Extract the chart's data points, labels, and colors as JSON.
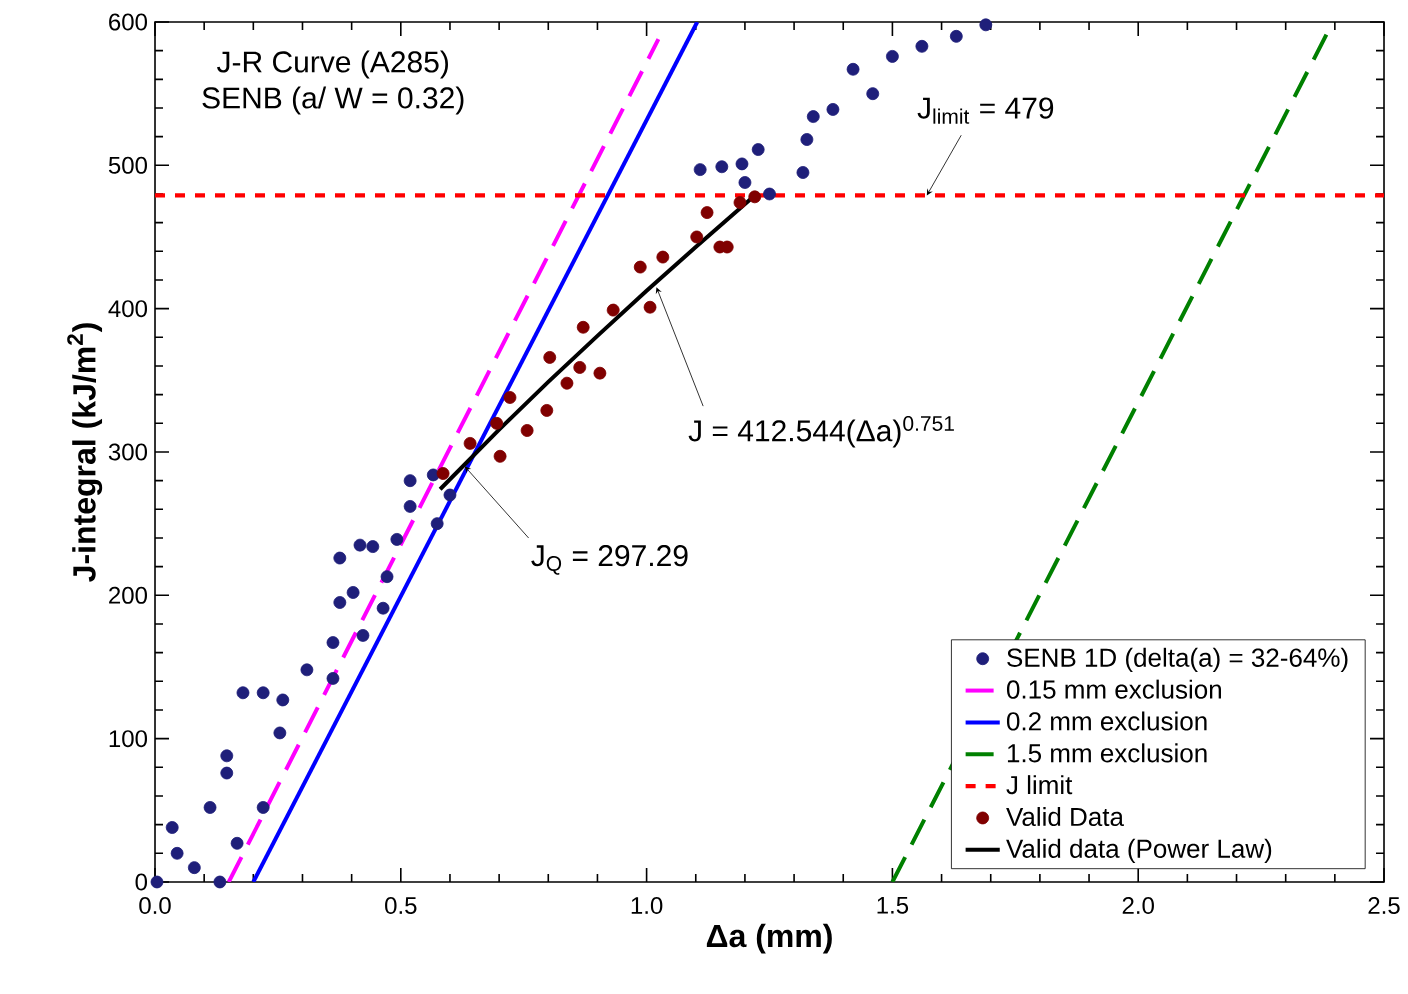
{
  "chart_data": {
    "type": "scatter",
    "xlabel": "Δa (mm)",
    "ylabel": "J-integral (kJ/m$^{2}$)",
    "xlim": [
      0,
      2.5
    ],
    "ylim": [
      0,
      600
    ],
    "xticks": [
      {
        "value": 0,
        "label": "0.0"
      },
      {
        "value": 0.5,
        "label": "0.5"
      },
      {
        "value": 1,
        "label": "1.0"
      },
      {
        "value": 1.5,
        "label": "1.5"
      },
      {
        "value": 2,
        "label": "2.0"
      },
      {
        "value": 2.5,
        "label": "2.5"
      }
    ],
    "yticks": [
      0,
      100,
      200,
      300,
      400,
      500,
      600
    ],
    "legend": "bottom right",
    "series": [
      {
        "name": "SENB 1D (delta(a) = 32-64%)",
        "marker": "circle",
        "color": "#1f1f7a",
        "x": [
          0.004,
          0.035,
          0.045,
          0.08,
          0.112,
          0.132,
          0.167,
          0.22,
          0.146,
          0.146,
          0.179,
          0.22,
          0.254,
          0.26,
          0.309,
          0.362,
          0.362,
          0.376,
          0.403,
          0.423,
          0.376,
          0.417,
          0.443,
          0.472,
          0.464,
          0.492,
          0.519,
          0.519,
          0.566,
          0.574,
          0.6,
          1.2,
          1.109,
          1.153,
          1.194,
          1.227,
          1.25,
          1.318,
          1.326,
          1.339,
          1.379,
          1.42,
          1.46,
          1.5,
          1.56,
          1.63,
          1.69
        ],
        "values": [
          0,
          38,
          20,
          10,
          52,
          0,
          27,
          52,
          76,
          88,
          132,
          132,
          104,
          127,
          148,
          167,
          142,
          195,
          202,
          172,
          226,
          235,
          234,
          213,
          191,
          239,
          262,
          280,
          284,
          250,
          270,
          488,
          497,
          499,
          501,
          511,
          480,
          495,
          518,
          534,
          539,
          567,
          550,
          576,
          583,
          590,
          598
        ]
      },
      {
        "name": "0.15 mm exclusion",
        "type": "line",
        "line_style": "dashed",
        "color": "#ff00ff",
        "x": [
          0.15,
          1.024
        ],
        "values": [
          0,
          588
        ]
      },
      {
        "name": "0.2 mm exclusion",
        "type": "line",
        "line_style": "solid",
        "color": "#0000ff",
        "x": [
          0.2,
          1.103
        ],
        "values": [
          0,
          600
        ]
      },
      {
        "name": "1.5 mm exclusion",
        "type": "line",
        "line_style": "dashed",
        "color": "#008000",
        "x": [
          1.5,
          2.396
        ],
        "values": [
          0,
          600
        ]
      },
      {
        "name": "Valid Data",
        "marker": "circle",
        "color": "#800000",
        "x": [
          0.586,
          0.641,
          0.702,
          0.695,
          0.757,
          0.722,
          0.797,
          0.803,
          0.838,
          0.864,
          0.905,
          0.871,
          0.932,
          0.987,
          1.007,
          1.033,
          1.102,
          1.164,
          1.123,
          1.149,
          1.19,
          1.22
        ],
        "values": [
          285,
          306,
          297,
          320,
          315,
          338,
          329,
          366,
          348,
          359,
          355,
          387,
          399,
          429,
          401,
          436,
          450,
          443,
          467,
          443,
          474,
          478
        ]
      },
      {
        "name": "Valid data (Power Law)",
        "type": "line",
        "line_style": "solid",
        "color": "#000000",
        "x": [
          0.58,
          0.7,
          0.8,
          0.9,
          1.0,
          1.1,
          1.22
        ],
        "values": [
          274,
          315.6,
          348.9,
          381,
          412.5,
          443,
          479
        ]
      }
    ],
    "ref_lines": [
      {
        "axis": "y",
        "value": 479,
        "label": "J limit",
        "color": "#ff0000",
        "line_style": "dotted"
      }
    ],
    "annotations": [
      "J-R Curve (A285)",
      "SENB (a/ W = 0.32)",
      {
        "text": "J$_{limit}$ = 479",
        "x": 1.57,
        "y": 479
      },
      {
        "text": "J = 412.544(Δa)$^{0.751}$",
        "x": 1.02,
        "y": 415
      },
      {
        "text": "J$_{Q}$ = 297.29",
        "x": 0.63,
        "y": 290
      }
    ]
  }
}
